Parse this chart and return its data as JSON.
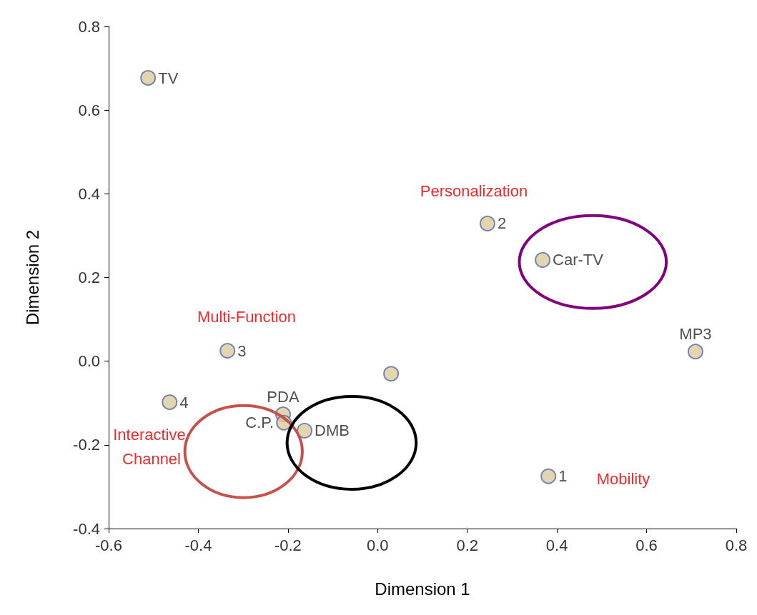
{
  "chart_data": {
    "type": "scatter",
    "xlabel": "Dimension 1",
    "ylabel": "Dimension 2",
    "xlim": [
      -0.6,
      0.8
    ],
    "xticks": [
      {
        "value": -0.6,
        "label": "-0.6"
      },
      {
        "value": -0.4,
        "label": "-0.4"
      },
      {
        "value": -0.2,
        "label": "-0.2"
      },
      {
        "value": 0,
        "label": "0.0"
      },
      {
        "value": 0.2,
        "label": "0.2"
      },
      {
        "value": 0.4,
        "label": "0.4"
      },
      {
        "value": 0.6,
        "label": "0.6"
      },
      {
        "value": 0.8,
        "label": "0.8"
      }
    ],
    "ylim": [
      -0.4,
      0.8
    ],
    "yticks": [
      {
        "value": -0.4,
        "label": "-0.4"
      },
      {
        "value": -0.2,
        "label": "-0.2"
      },
      {
        "value": 0,
        "label": "0.0"
      },
      {
        "value": 0.2,
        "label": "0.2"
      },
      {
        "value": 0.4,
        "label": "0.4"
      },
      {
        "value": 0.6,
        "label": "0.6"
      },
      {
        "value": 0.8,
        "label": "0.8"
      }
    ],
    "grid": false,
    "legend": false,
    "marker": "circle",
    "series": [
      {
        "name": "TV",
        "color": "#d9cc9c",
        "x": [
          -0.512
        ],
        "values": [
          0.677
        ]
      },
      {
        "name": "Car-TV",
        "color": "#d9cc9c",
        "x": [
          0.368
        ],
        "values": [
          0.242
        ]
      },
      {
        "name": "MP3",
        "color": "#d9cc9c",
        "x": [
          0.709
        ],
        "values": [
          0.023
        ]
      },
      {
        "color": "#d9cc9c",
        "x": [
          0.03
        ],
        "values": [
          -0.03
        ]
      },
      {
        "name": "PDA",
        "color": "#d9cc9c",
        "x": [
          -0.211
        ],
        "values": [
          -0.127
        ]
      },
      {
        "name": "C.P.",
        "color": "#d9cc9c",
        "x": [
          -0.209
        ],
        "values": [
          -0.147
        ]
      },
      {
        "name": "DMB",
        "color": "#d9cc9c",
        "x": [
          -0.163
        ],
        "values": [
          -0.166
        ]
      },
      {
        "name": "1",
        "color": "#d9cc9c",
        "x": [
          0.381
        ],
        "values": [
          -0.275
        ]
      },
      {
        "name": "2",
        "color": "#d9cc9c",
        "x": [
          0.245
        ],
        "values": [
          0.329
        ]
      },
      {
        "name": "3",
        "color": "#d9cc9c",
        "x": [
          -0.335
        ],
        "values": [
          0.025
        ]
      },
      {
        "name": "4",
        "color": "#d9cc9c",
        "x": [
          -0.464
        ],
        "values": [
          -0.098
        ]
      }
    ],
    "annotations": [
      "Personalization",
      "Multi-Function",
      "Interactive Channel",
      "Mobility"
    ]
  }
}
